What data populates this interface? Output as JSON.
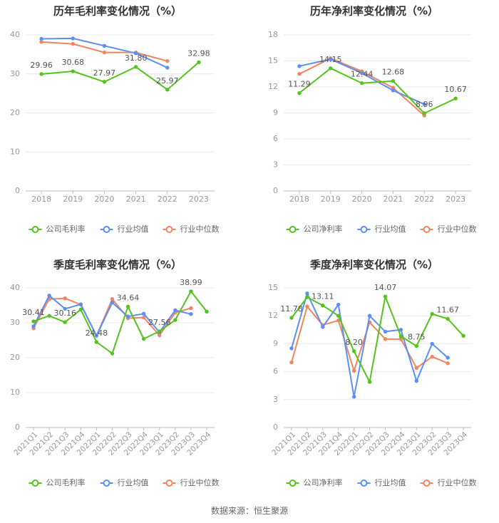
{
  "source": "数据来源：恒生聚源",
  "colors": {
    "company": "#52c41a",
    "industry_avg": "#5b8ff9",
    "industry_median": "#f4845f",
    "axis": "#d9d9d9",
    "grid": "#e8e8e8",
    "text": "#666666"
  },
  "chart_data": [
    {
      "type": "line",
      "title": "历年毛利率变化情况（%）",
      "categories": [
        "2018",
        "2019",
        "2020",
        "2021",
        "2022",
        "2023"
      ],
      "ylim": [
        0,
        40
      ],
      "yticks": [
        0,
        10,
        20,
        30,
        40
      ],
      "series": [
        {
          "name": "公司毛利率",
          "key": "company",
          "values": [
            29.96,
            30.68,
            27.97,
            31.8,
            25.97,
            32.98
          ],
          "labels": [
            "29.96",
            "30.68",
            "27.97",
            "31.80",
            "25.97",
            "32.98"
          ]
        },
        {
          "name": "行业均值",
          "key": "industry_avg",
          "values": [
            39.0,
            39.1,
            37.2,
            35.3,
            31.6,
            null
          ]
        },
        {
          "name": "行业中位数",
          "key": "industry_median",
          "values": [
            38.2,
            37.7,
            35.5,
            35.5,
            33.3,
            null
          ]
        }
      ]
    },
    {
      "type": "line",
      "title": "历年净利率变化情况（%）",
      "categories": [
        "2018",
        "2019",
        "2020",
        "2021",
        "2022",
        "2023"
      ],
      "ylim": [
        0,
        18
      ],
      "yticks": [
        0,
        3,
        6,
        9,
        12,
        15,
        18
      ],
      "series": [
        {
          "name": "公司净利率",
          "key": "company",
          "values": [
            11.29,
            14.15,
            12.44,
            12.68,
            8.96,
            10.67
          ],
          "labels": [
            "11.29",
            "14.15",
            "12.44",
            "12.68",
            "8.96",
            "10.67"
          ]
        },
        {
          "name": "行业均值",
          "key": "industry_avg",
          "values": [
            14.4,
            15.2,
            13.6,
            11.6,
            10.0,
            null
          ]
        },
        {
          "name": "行业中位数",
          "key": "industry_median",
          "values": [
            13.5,
            15.3,
            13.8,
            11.9,
            8.7,
            null
          ]
        }
      ]
    },
    {
      "type": "line",
      "title": "季度毛利率变化情况（%）",
      "categories": [
        "2021Q1",
        "2021Q2",
        "2021Q3",
        "2021Q4",
        "2022Q1",
        "2022Q2",
        "2022Q3",
        "2022Q4",
        "2023Q1",
        "2023Q2",
        "2023Q3",
        "2023Q4"
      ],
      "ylim": [
        0,
        40
      ],
      "yticks": [
        0,
        10,
        20,
        30,
        40
      ],
      "series": [
        {
          "name": "公司毛利率",
          "key": "company",
          "values": [
            30.41,
            32.0,
            30.16,
            33.8,
            24.48,
            21.2,
            34.64,
            25.4,
            27.56,
            30.8,
            38.99,
            33.2
          ],
          "labels": [
            "30.41",
            "",
            "30.16",
            "",
            "24.48",
            "",
            "34.64",
            "",
            "27.56",
            "",
            "38.99",
            ""
          ]
        },
        {
          "name": "行业均值",
          "key": "industry_avg",
          "values": [
            29.0,
            37.8,
            34.0,
            35.3,
            26.3,
            35.8,
            31.8,
            32.6,
            27.3,
            33.6,
            32.5,
            null
          ]
        },
        {
          "name": "行业中位数",
          "key": "industry_median",
          "values": [
            28.4,
            36.8,
            37.0,
            35.2,
            26.3,
            36.8,
            31.3,
            31.5,
            26.4,
            32.9,
            34.2,
            null
          ]
        }
      ]
    },
    {
      "type": "line",
      "title": "季度净利率变化情况（%）",
      "categories": [
        "2021Q1",
        "2021Q2",
        "2021Q3",
        "2021Q4",
        "2022Q1",
        "2022Q2",
        "2022Q3",
        "2022Q4",
        "2023Q1",
        "2023Q2",
        "2023Q3",
        "2023Q4"
      ],
      "ylim": [
        0,
        15
      ],
      "yticks": [
        0,
        3,
        6,
        9,
        12,
        15
      ],
      "series": [
        {
          "name": "公司净利率",
          "key": "company",
          "values": [
            11.78,
            14.0,
            13.11,
            12.0,
            8.2,
            4.9,
            14.07,
            9.8,
            8.75,
            12.2,
            11.67,
            9.85
          ],
          "labels": [
            "11.78",
            "",
            "13.11",
            "",
            "8.20",
            "",
            "14.07",
            "",
            "8.75",
            "",
            "11.67",
            ""
          ]
        },
        {
          "name": "行业均值",
          "key": "industry_avg",
          "values": [
            8.5,
            14.4,
            10.8,
            13.2,
            3.3,
            12.0,
            10.3,
            10.5,
            5.0,
            9.0,
            7.5,
            null
          ]
        },
        {
          "name": "行业中位数",
          "key": "industry_median",
          "values": [
            7.0,
            13.0,
            11.0,
            11.5,
            6.1,
            11.3,
            9.5,
            9.5,
            6.4,
            7.6,
            6.9,
            null
          ]
        }
      ]
    }
  ]
}
